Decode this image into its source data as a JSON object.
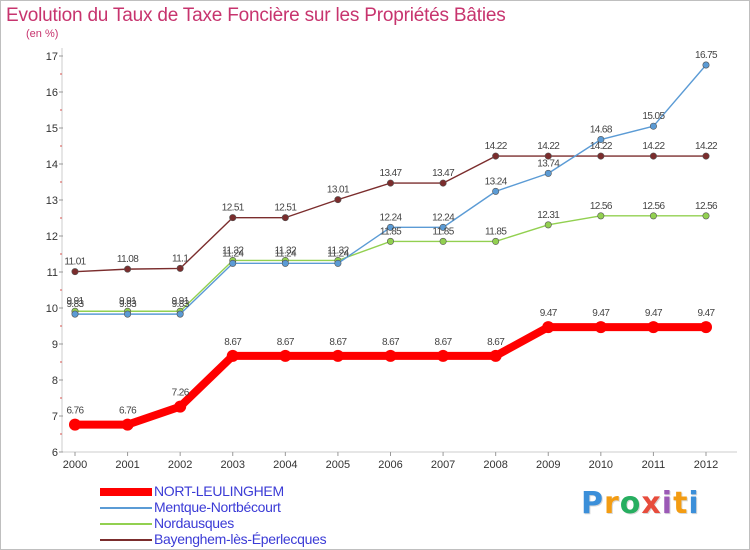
{
  "chart_data": {
    "type": "line",
    "title": "Evolution du Taux de Taxe Foncière sur les Propriétés Bâties",
    "ylabel": "(en %)",
    "xlabel": "",
    "x": [
      "2000",
      "2001",
      "2002",
      "2003",
      "2004",
      "2005",
      "2006",
      "2007",
      "2008",
      "2009",
      "2010",
      "2011",
      "2012"
    ],
    "ylim": [
      6,
      17
    ],
    "yticks": [
      "6",
      "7",
      "8",
      "9",
      "10",
      "11",
      "12",
      "13",
      "14",
      "15",
      "16",
      "17"
    ],
    "grid": false,
    "legend_position": "bottom-left",
    "series": [
      {
        "name": "NORT-LEULINGHEM",
        "color": "#ff0000",
        "values": [
          6.76,
          6.76,
          7.26,
          8.67,
          8.67,
          8.67,
          8.67,
          8.67,
          8.67,
          9.47,
          9.47,
          9.47,
          9.47
        ],
        "labels": [
          "6.76",
          "6.76",
          "7.26",
          "8.67",
          "8.67",
          "8.67",
          "8.67",
          "8.67",
          "8.67",
          "9.47",
          "9.47",
          "9.47",
          "9.47"
        ]
      },
      {
        "name": "Mentque-Nortbécourt",
        "color": "#5b9bd5",
        "values": [
          9.83,
          9.83,
          9.83,
          11.24,
          11.24,
          11.24,
          12.24,
          12.24,
          13.24,
          13.74,
          14.68,
          15.05,
          16.75
        ],
        "labels": [
          "9.83",
          "9.83",
          "9.83",
          "11.24",
          "11.24",
          "11.24",
          "12.24",
          "12.24",
          "13.24",
          "13.74",
          "14.68",
          "15.05",
          "16.75"
        ]
      },
      {
        "name": "Nordausques",
        "color": "#92d050",
        "values": [
          9.91,
          9.91,
          9.91,
          11.32,
          11.32,
          11.32,
          11.85,
          11.85,
          11.85,
          12.31,
          12.56,
          12.56,
          12.56
        ],
        "labels": [
          "9.91",
          "9.91",
          "9.91",
          "11.32",
          "11.32",
          "11.32",
          "11.85",
          "11.85",
          "11.85",
          "12.31",
          "12.56",
          "12.56",
          "12.56"
        ]
      },
      {
        "name": "Bayenghem-lès-Éperlecques",
        "color": "#7b2d2d",
        "values": [
          11.01,
          11.08,
          11.1,
          12.51,
          12.51,
          13.01,
          13.47,
          13.47,
          14.22,
          14.22,
          14.22,
          14.22,
          14.22
        ],
        "labels": [
          "11.01",
          "11.08",
          "11.1",
          "12.51",
          "12.51",
          "13.01",
          "13.47",
          "13.47",
          "14.22",
          "14.22",
          "14.22",
          "14.22",
          "14.22"
        ]
      }
    ]
  },
  "logo": {
    "letters": [
      "P",
      "r",
      "o",
      "x",
      "i",
      "t",
      "i"
    ],
    "colors": [
      "#3b8fd9",
      "#f39c12",
      "#27ae60",
      "#e74c3c",
      "#9b59b6",
      "#f39c12",
      "#3b8fd9"
    ]
  }
}
